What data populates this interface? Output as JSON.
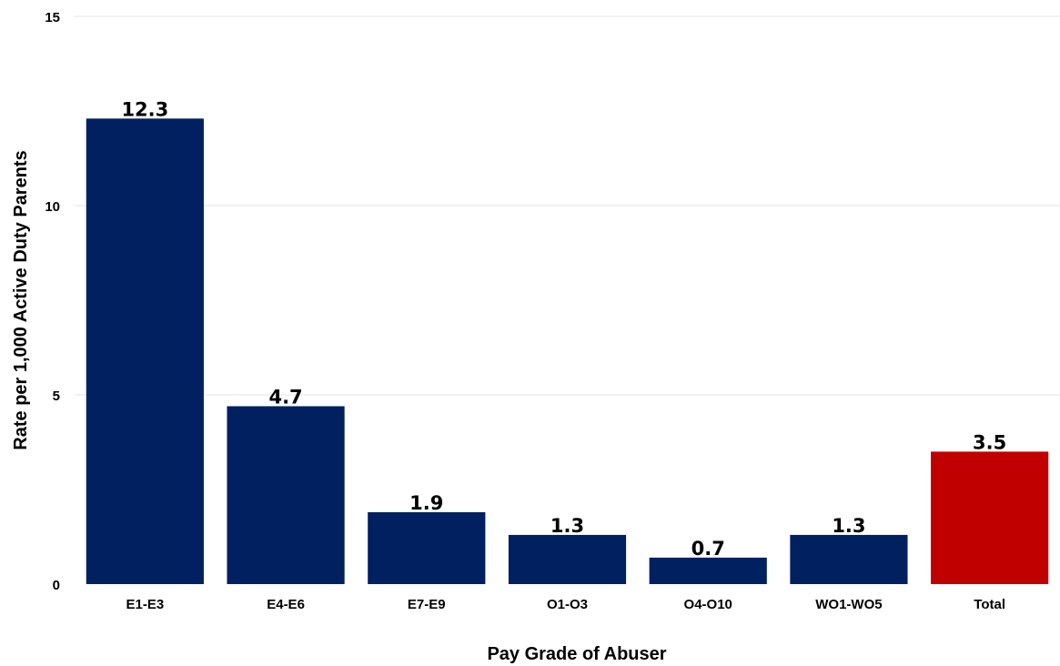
{
  "chart_data": {
    "type": "bar",
    "title": "",
    "xlabel": "Pay Grade of Abuser",
    "ylabel": "Rate per 1,000 Active Duty Parents",
    "categories": [
      "E1-E3",
      "E4-E6",
      "E7-E9",
      "O1-O3",
      "O4-O10",
      "WO1-WO5",
      "Total"
    ],
    "values": [
      12.3,
      4.7,
      1.9,
      1.3,
      0.7,
      1.3,
      3.5
    ],
    "value_labels": [
      "12.3",
      "4.7",
      "1.9",
      "1.3",
      "0.7",
      "1.3",
      "3.5"
    ],
    "yticks": [
      0,
      5,
      10,
      15
    ],
    "ylim": [
      0,
      15
    ],
    "grid": true,
    "legend": "none",
    "colors": {
      "bar": "#002060",
      "highlight": "#C00000",
      "grid": "#e6e6e6"
    },
    "highlight_category": "Total"
  }
}
